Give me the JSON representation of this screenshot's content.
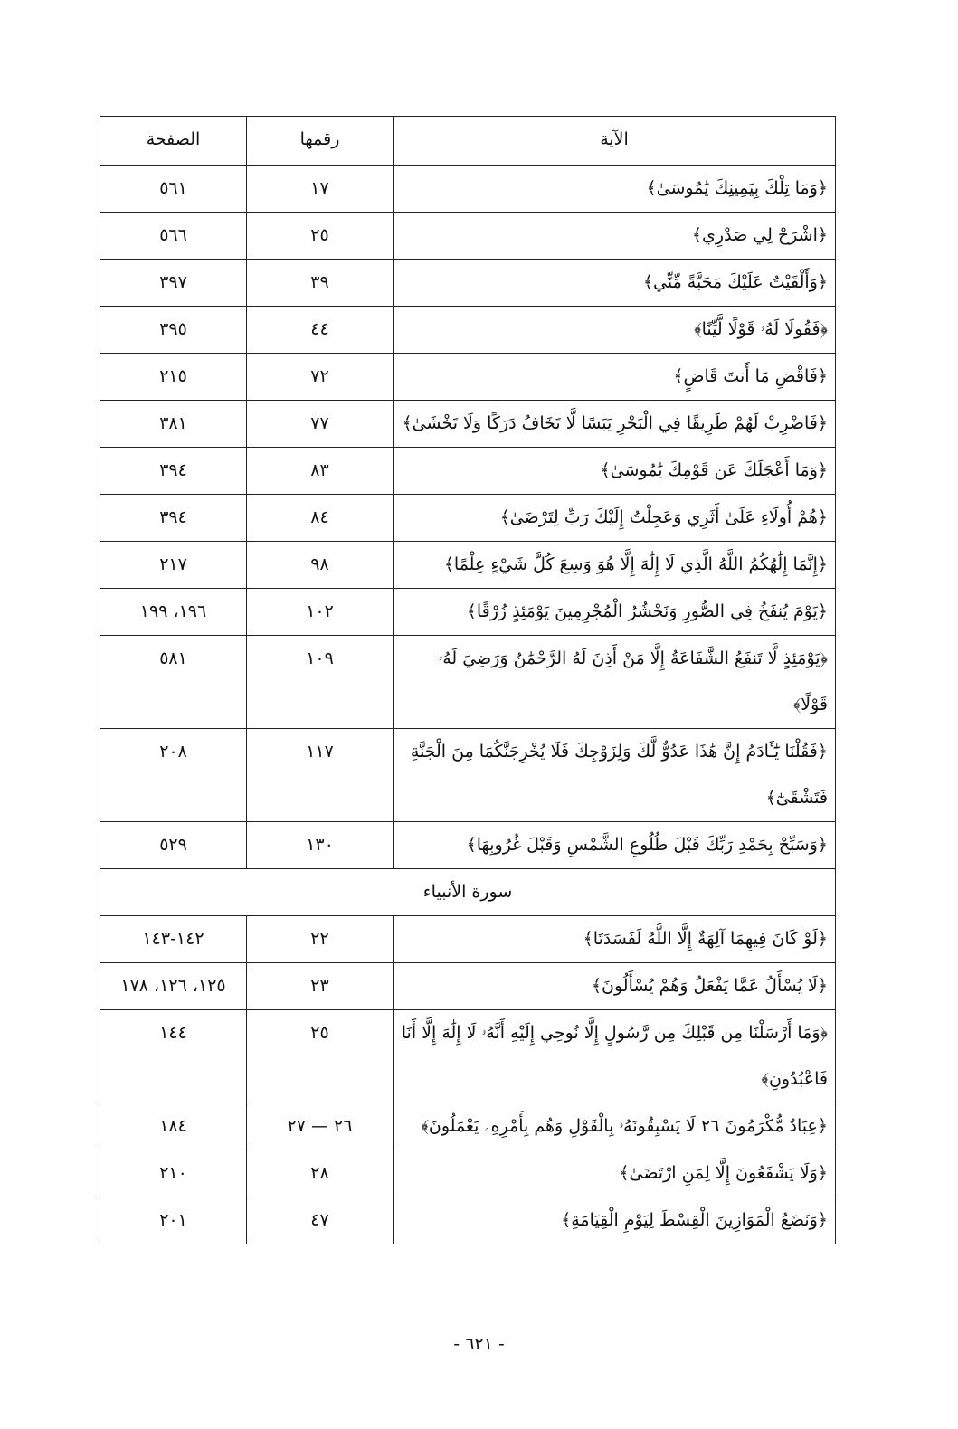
{
  "table": {
    "header": [
      "الآية",
      "رقمها",
      "الصفحة"
    ],
    "rows": [
      [
        "﴿وَمَا تِلْكَ بِيَمِينِكَ يَٰمُوسَىٰ﴾",
        "١٧",
        "٥٦١"
      ],
      [
        "﴿اشْرَحْ لِي صَدْرِي﴾",
        "٢٥",
        "٥٦٦"
      ],
      [
        "﴿وَأَلْقَيْتُ عَلَيْكَ مَحَبَّةً مِّنِّي﴾",
        "٣٩",
        "٣٩٧"
      ],
      [
        "﴿فَقُولَا لَهُۥ قَوْلًا لَّيِّنًا﴾",
        "٤٤",
        "٣٩٥"
      ],
      [
        "﴿فَاقْضِ مَا أَنتَ قَاضٍ﴾",
        "٧٢",
        "٢١٥"
      ],
      [
        "﴿فَاضْرِبْ لَهُمْ طَرِيقًا فِي الْبَحْرِ يَبَسًا لَّا تَخَافُ دَرَكًا وَلَا تَخْشَىٰ﴾",
        "٧٧",
        "٣٨١"
      ],
      [
        "﴿وَمَا أَعْجَلَكَ عَن قَوْمِكَ يَٰمُوسَىٰ﴾",
        "٨٣",
        "٣٩٤"
      ],
      [
        "﴿هُمْ أُولَاءِ عَلَىٰ أَثَرِي وَعَجِلْتُ إِلَيْكَ رَبِّ لِتَرْضَىٰ﴾",
        "٨٤",
        "٣٩٤"
      ],
      [
        "﴿إِنَّمَا إِلَٰهُكُمُ اللَّهُ الَّذِي لَا إِلَٰهَ إِلَّا هُوَ وَسِعَ كُلَّ شَيْءٍ عِلْمًا﴾",
        "٩٨",
        "٢١٧"
      ],
      [
        "﴿يَوْمَ يُنفَخُ فِي الصُّورِ وَنَحْشُرُ الْمُجْرِمِينَ يَوْمَئِذٍ زُرْقًا﴾",
        "١٠٢",
        "١٩٦، ١٩٩"
      ],
      [
        "﴿يَوْمَئِذٍ لَّا تَنفَعُ الشَّفَاعَةُ إِلَّا مَنْ أَذِنَ لَهُ الرَّحْمَٰنُ وَرَضِيَ لَهُۥ قَوْلًا﴾",
        "١٠٩",
        "٥٨١"
      ],
      [
        "﴿فَقُلْنَا يَٰٓـَٔادَمُ إِنَّ هَٰذَا عَدُوٌّ لَّكَ وَلِزَوْجِكَ فَلَا يُخْرِجَنَّكُمَا مِنَ الْجَنَّةِ فَتَشْقَىٰٓ﴾",
        "١١٧",
        "٢٠٨"
      ],
      [
        "﴿وَسَبِّحْ بِحَمْدِ رَبِّكَ قَبْلَ طُلُوعِ الشَّمْسِ وَقَبْلَ غُرُوبِهَا﴾",
        "١٣٠",
        "٥٢٩"
      ],
      {
        "section": "سورة الأنبياء"
      },
      [
        "﴿لَوْ كَانَ فِيهِمَا آلِهَةٌ إِلَّا اللَّهُ لَفَسَدَتَا﴾",
        "٢٢",
        "١٤٢-١٤٣"
      ],
      [
        "﴿لَا يُسْأَلُ عَمَّا يَفْعَلُ وَهُمْ يُسْأَلُونَ﴾",
        "٢٣",
        "١٢٥، ١٢٦، ١٧٨"
      ],
      [
        "﴿وَمَا أَرْسَلْنَا مِن قَبْلِكَ مِن رَّسُولٍ إِلَّا نُوحِي إِلَيْهِ أَنَّهُۥ لَا إِلَٰهَ إِلَّا أَنَا فَاعْبُدُونِ﴾",
        "٢٥",
        "١٤٤"
      ],
      [
        "﴿عِبَادٌ مُّكْرَمُونَ ٢٦ لَا يَسْبِقُونَهُۥ بِالْقَوْلِ وَهُم بِأَمْرِهِۦ يَعْمَلُونَ﴾",
        "٢٦ — ٢٧",
        "١٨٤"
      ],
      [
        "﴿وَلَا يَشْفَعُونَ إِلَّا لِمَنِ ارْتَضَىٰ﴾",
        "٢٨",
        "٢١٠"
      ],
      [
        "﴿وَنَضَعُ الْمَوَازِينَ الْقِسْطَ لِيَوْمِ الْقِيَامَةِ﴾",
        "٤٧",
        "٢٠١"
      ]
    ]
  },
  "footer": "- ٦٢١ -"
}
